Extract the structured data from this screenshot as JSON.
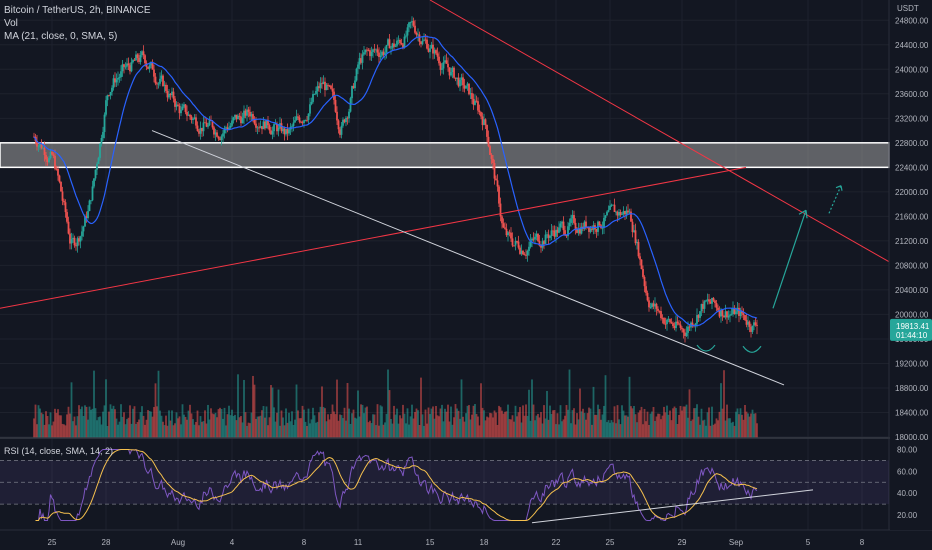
{
  "header": {
    "title": "Bitcoin / TetherUS, 2h, BINANCE",
    "volume_label": "Vol",
    "ma_label": "MA (21, close, 0, SMA, 5)",
    "rsi_label": "RSI (14, close, SMA, 14, 2)"
  },
  "price_axis": {
    "currency": "USDT",
    "ticks": [
      "24800.00",
      "24400.00",
      "24000.00",
      "23600.00",
      "23200.00",
      "22800.00",
      "22400.00",
      "22000.00",
      "21600.00",
      "21200.00",
      "20800.00",
      "20400.00",
      "20000.00",
      "19600.00",
      "19200.00",
      "18800.00",
      "18400.00",
      "18000.00"
    ],
    "last_price": "19813.41",
    "countdown": "01:44:10"
  },
  "rsi_axis": {
    "ticks": [
      "80.00",
      "60.00",
      "40.00",
      "20.00"
    ]
  },
  "time_axis": {
    "ticks": [
      "25",
      "28",
      "Aug",
      "4",
      "8",
      "11",
      "15",
      "18",
      "22",
      "25",
      "29",
      "Sep",
      "5",
      "8"
    ]
  },
  "colors": {
    "background": "#131722",
    "bull": "#26a69a",
    "bear": "#ef5350",
    "ma": "#2962ff",
    "rsi": "#7e57c2",
    "rsi_ma": "#f5c04e",
    "resistance_zone": "#9e9e9e",
    "trendline_red": "#f23645",
    "trendline_white": "#d1d4dc",
    "arrow": "#26a69a"
  },
  "chart_data": {
    "type": "candlestick",
    "title": "Bitcoin / TetherUS, 2h, BINANCE",
    "xlabel": "",
    "ylabel": "USDT",
    "ylim": [
      18000,
      25000
    ],
    "x_ticks": [
      "25",
      "28",
      "Aug",
      "4",
      "8",
      "11",
      "15",
      "18",
      "22",
      "25",
      "29",
      "Sep",
      "5",
      "8"
    ],
    "price_anchors": [
      {
        "x": "Jul 24",
        "y": 22900
      },
      {
        "x": "Jul 25",
        "y": 22500
      },
      {
        "x": "Jul 26",
        "y": 21000
      },
      {
        "x": "Jul 27",
        "y": 21800
      },
      {
        "x": "Jul 28",
        "y": 23800
      },
      {
        "x": "Jul 30",
        "y": 24200
      },
      {
        "x": "Aug 1",
        "y": 23300
      },
      {
        "x": "Aug 3",
        "y": 23000
      },
      {
        "x": "Aug 5",
        "y": 23300
      },
      {
        "x": "Aug 7",
        "y": 22900
      },
      {
        "x": "Aug 9",
        "y": 23800
      },
      {
        "x": "Aug 10",
        "y": 23000
      },
      {
        "x": "Aug 11",
        "y": 24200
      },
      {
        "x": "Aug 13",
        "y": 24400
      },
      {
        "x": "Aug 14",
        "y": 24700
      },
      {
        "x": "Aug 15",
        "y": 24300
      },
      {
        "x": "Aug 17",
        "y": 23600
      },
      {
        "x": "Aug 18",
        "y": 23100
      },
      {
        "x": "Aug 19",
        "y": 21200
      },
      {
        "x": "Aug 20",
        "y": 21100
      },
      {
        "x": "Aug 22",
        "y": 21400
      },
      {
        "x": "Aug 24",
        "y": 21500
      },
      {
        "x": "Aug 26",
        "y": 21700
      },
      {
        "x": "Aug 27",
        "y": 20200
      },
      {
        "x": "Aug 28",
        "y": 19900
      },
      {
        "x": "Aug 29",
        "y": 19700
      },
      {
        "x": "Aug 30",
        "y": 20200
      },
      {
        "x": "Aug 31",
        "y": 20100
      },
      {
        "x": "Sep 1",
        "y": 20000
      },
      {
        "x": "Sep 2",
        "y": 19813
      }
    ],
    "resistance_zone": [
      22400,
      22800
    ],
    "last_price": 19813.41,
    "rsi": {
      "levels": [
        70,
        50,
        30
      ],
      "ylim": [
        10,
        85
      ]
    }
  }
}
